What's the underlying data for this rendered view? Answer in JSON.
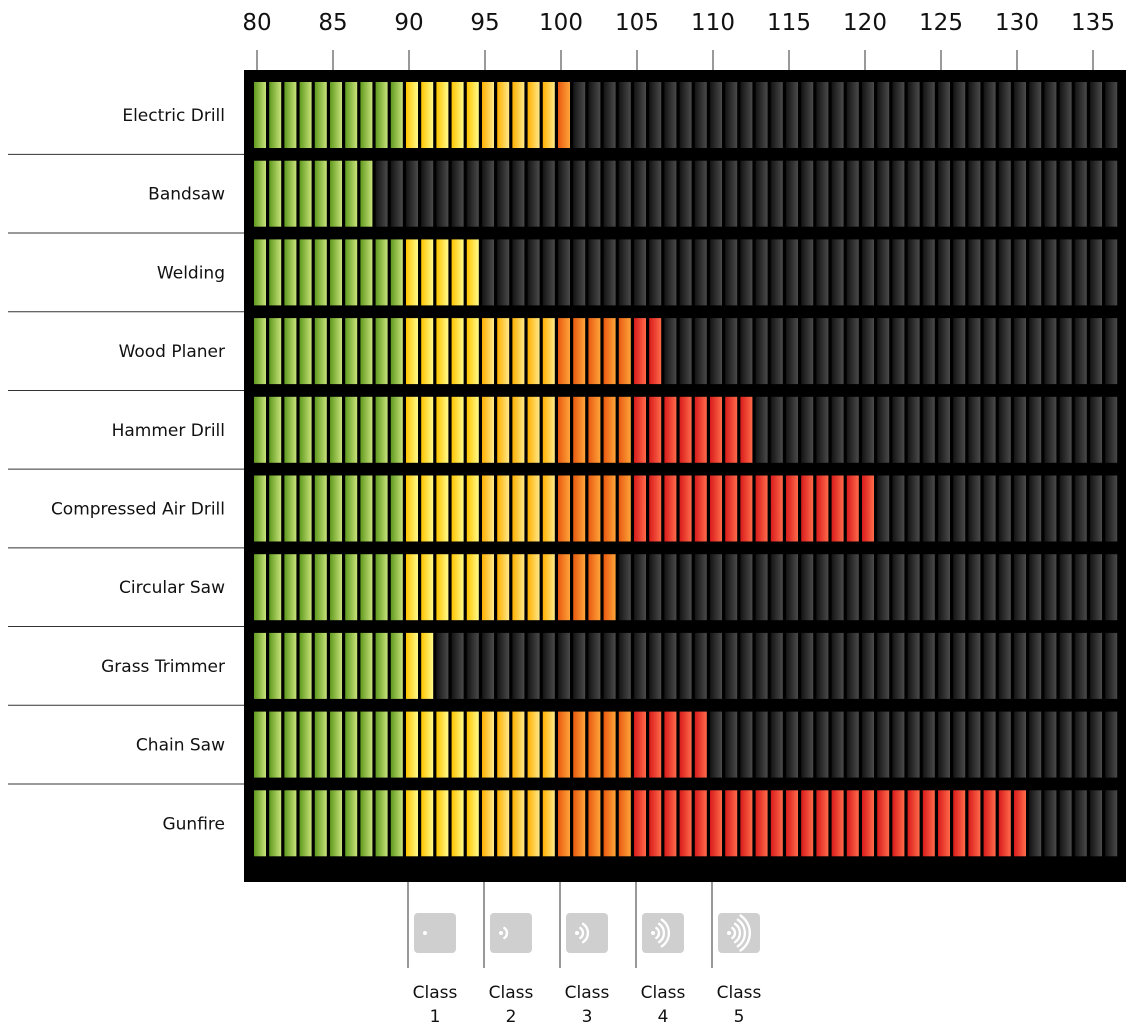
{
  "chart_data": {
    "type": "bar",
    "orientation": "horizontal",
    "x_ticks": [
      "80",
      "85",
      "90",
      "95",
      "100",
      "105",
      "110",
      "115",
      "120",
      "125",
      "130",
      "135"
    ],
    "xlim": [
      80,
      137
    ],
    "categories": [
      "Electric Drill",
      "Bandsaw",
      "Welding",
      "Wood Planer",
      "Hammer Drill",
      "Compressed Air Drill",
      "Circular Saw",
      "Grass Trimmer",
      "Chain Saw",
      "Gunfire"
    ],
    "values": [
      101,
      88,
      95,
      107,
      113,
      121,
      104,
      92,
      110,
      131
    ],
    "grid": false,
    "legend": "none",
    "classes": [
      {
        "label_line1": "Class",
        "label_line2": "1",
        "from": 90,
        "to": 95,
        "icon": "sound-waves-icon-0"
      },
      {
        "label_line1": "Class",
        "label_line2": "2",
        "from": 95,
        "to": 100,
        "icon": "sound-waves-icon-1"
      },
      {
        "label_line1": "Class",
        "label_line2": "3",
        "from": 100,
        "to": 105,
        "icon": "sound-waves-icon-2"
      },
      {
        "label_line1": "Class",
        "label_line2": "4",
        "from": 105,
        "to": 110,
        "icon": "sound-waves-icon-3"
      },
      {
        "label_line1": "Class",
        "label_line2": "5",
        "from": 110,
        "to": 115,
        "icon": "sound-waves-icon-4"
      }
    ],
    "colors": {
      "green": "#8dc63f",
      "yellow": "#ffd200",
      "orange": "#f26a1b",
      "red": "#e52421",
      "unlit": "#3a3a3a",
      "panel": "#000000",
      "icon_bg": "#cfcfcf"
    }
  }
}
